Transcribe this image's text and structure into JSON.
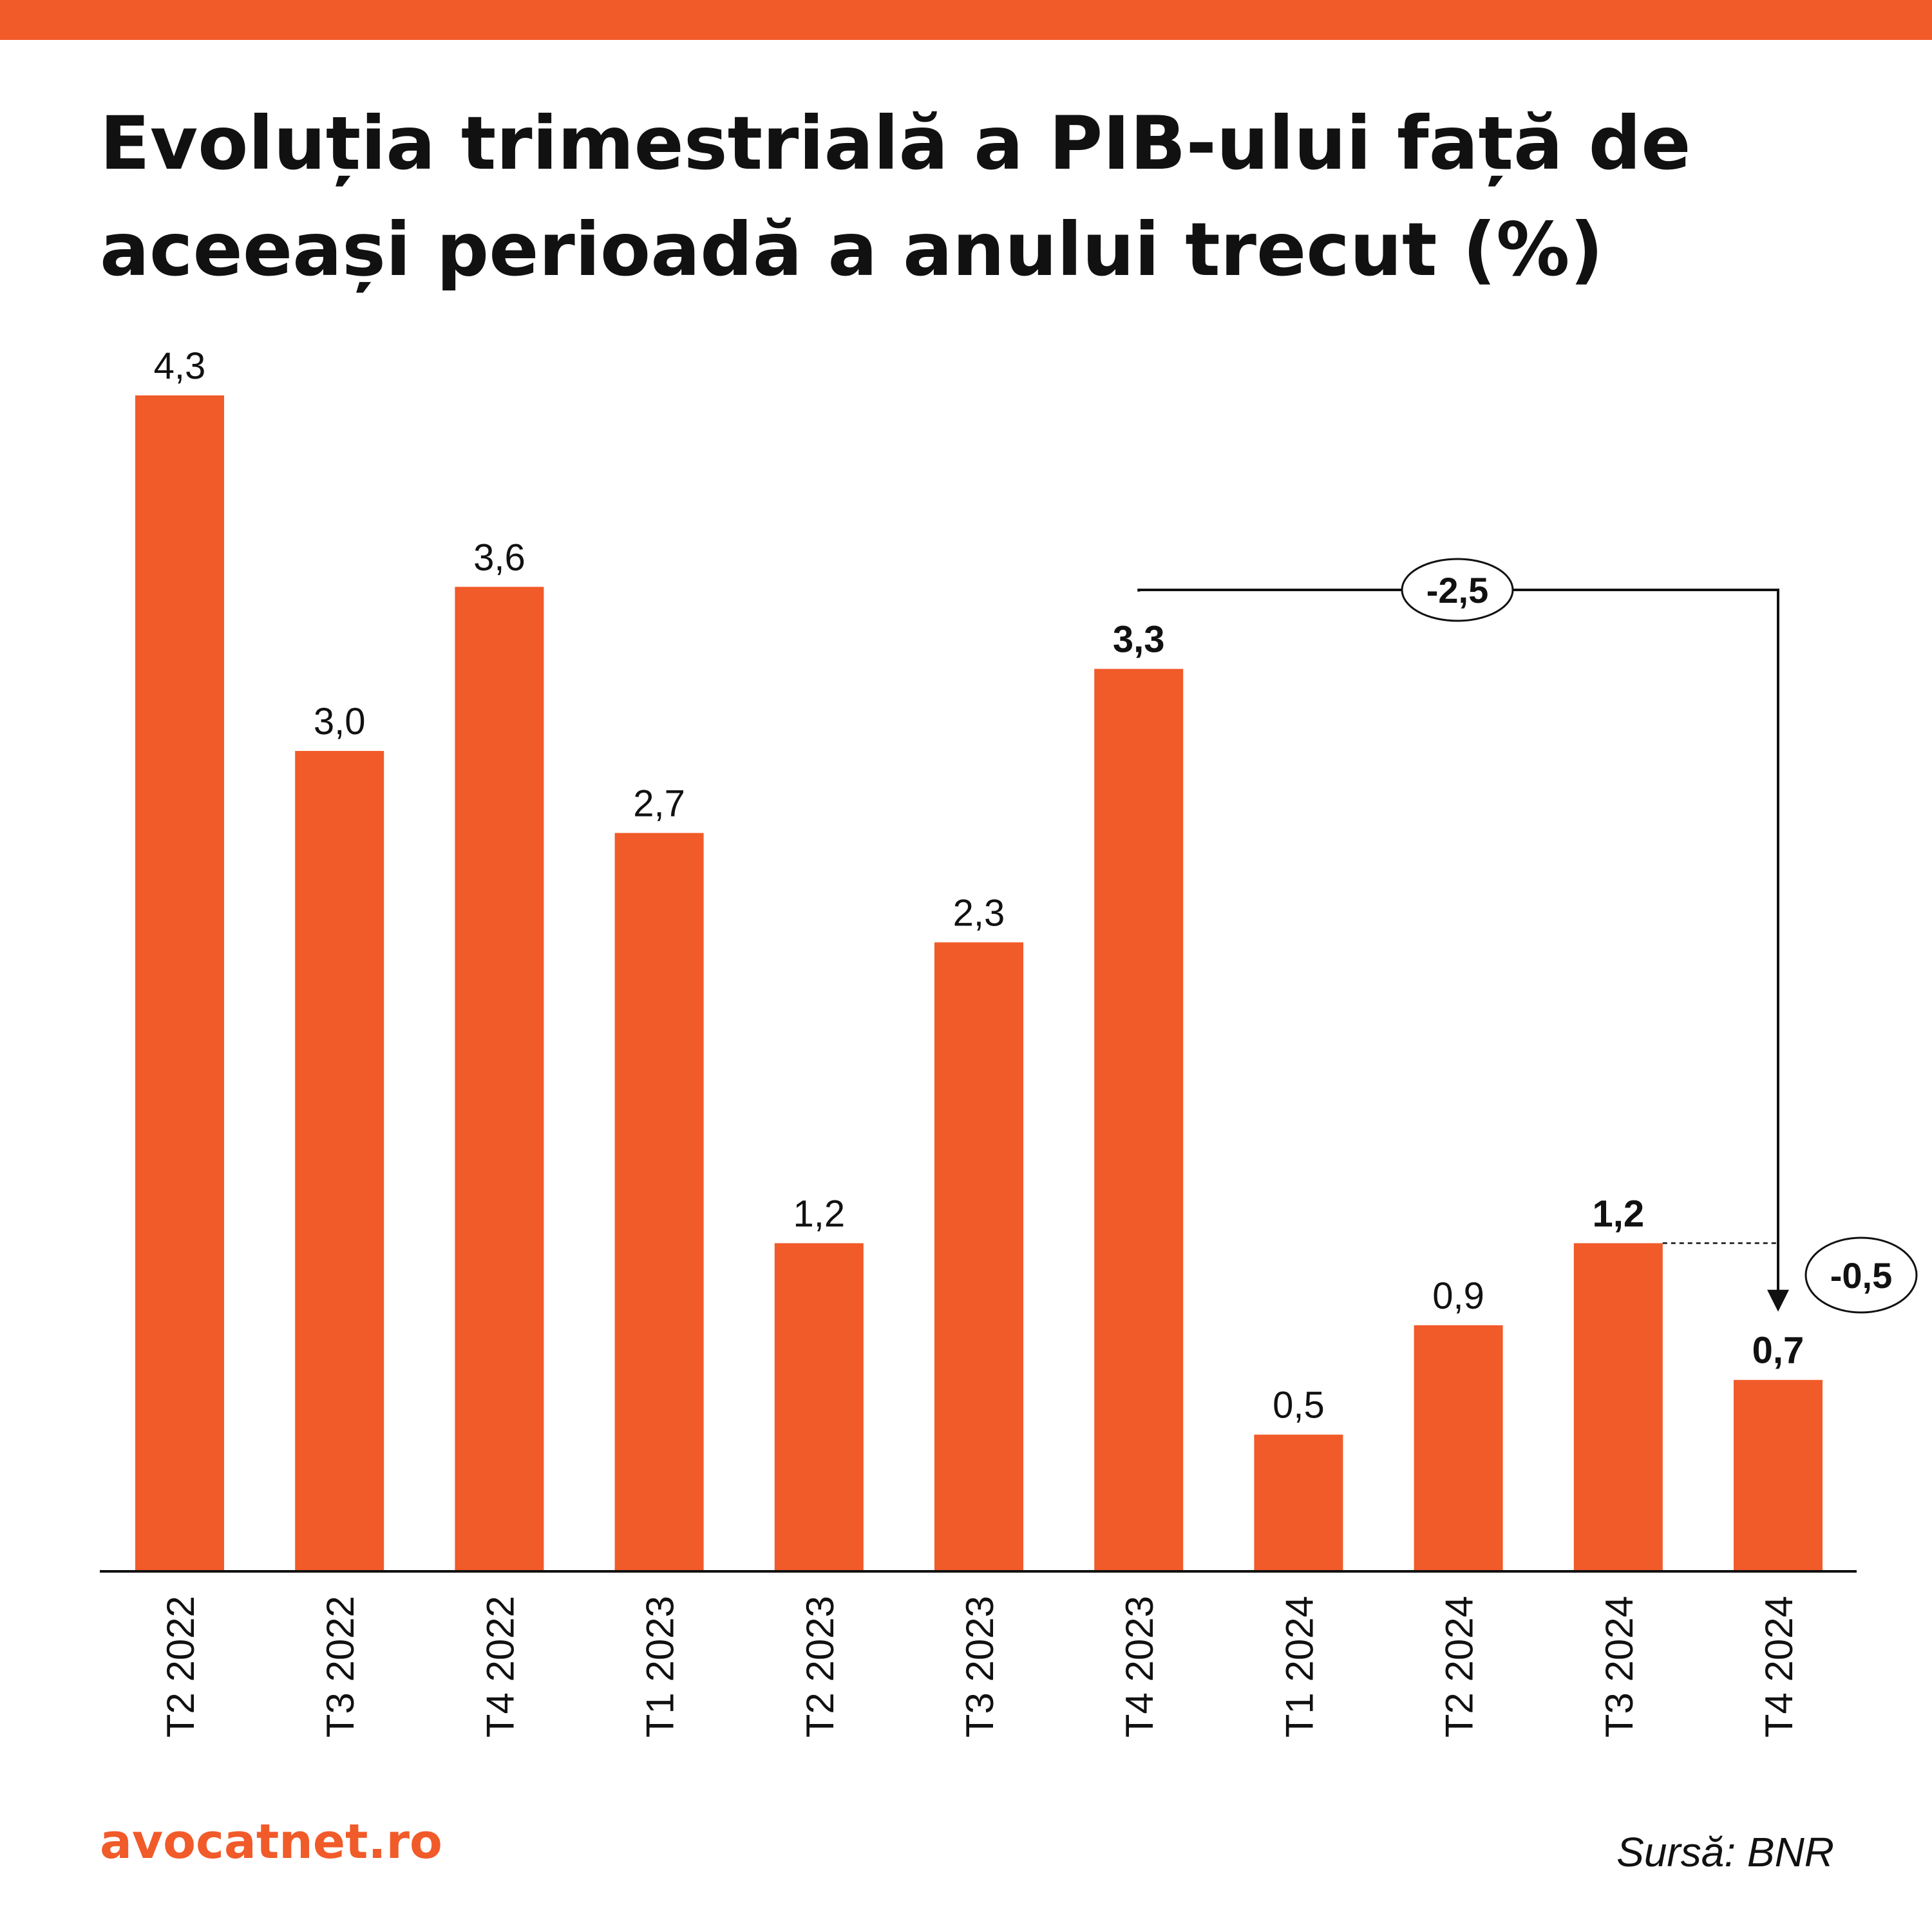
{
  "title_lines": [
    "Evoluția trimestrială a PIB-ului față de",
    "aceeași perioadă a anului trecut (%)"
  ],
  "brand": "avocatnet.ro",
  "source": "Sursă: BNR",
  "colors": {
    "accent": "#F15A29",
    "text": "#111111"
  },
  "chart_data": {
    "type": "bar",
    "categories": [
      "T2 2022",
      "T3 2022",
      "T4 2022",
      "T1 2023",
      "T2 2023",
      "T3 2023",
      "T4 2023",
      "T1 2024",
      "T2 2024",
      "T3 2024",
      "T4 2024"
    ],
    "values": [
      4.3,
      3.0,
      3.6,
      2.7,
      1.2,
      2.3,
      3.3,
      0.5,
      0.9,
      1.2,
      0.7
    ],
    "value_labels": [
      "4,3",
      "3,0",
      "3,6",
      "2,7",
      "1,2",
      "2,3",
      "3,3",
      "0,5",
      "0,9",
      "1,2",
      "0,7"
    ],
    "bold_labels": [
      "T4 2023",
      "T3 2024",
      "T4 2024"
    ],
    "title": "Evoluția trimestrială a PIB-ului față de aceeași perioadă a anului trecut (%)",
    "xlabel": "",
    "ylabel": "",
    "ylim": [
      0,
      4.3
    ],
    "grid": false,
    "annotations": [
      {
        "from": "T4 2023",
        "to": "T4 2024",
        "label": "-2,5"
      },
      {
        "from": "T3 2024",
        "to": "T4 2024",
        "label": "-0,5"
      }
    ]
  }
}
